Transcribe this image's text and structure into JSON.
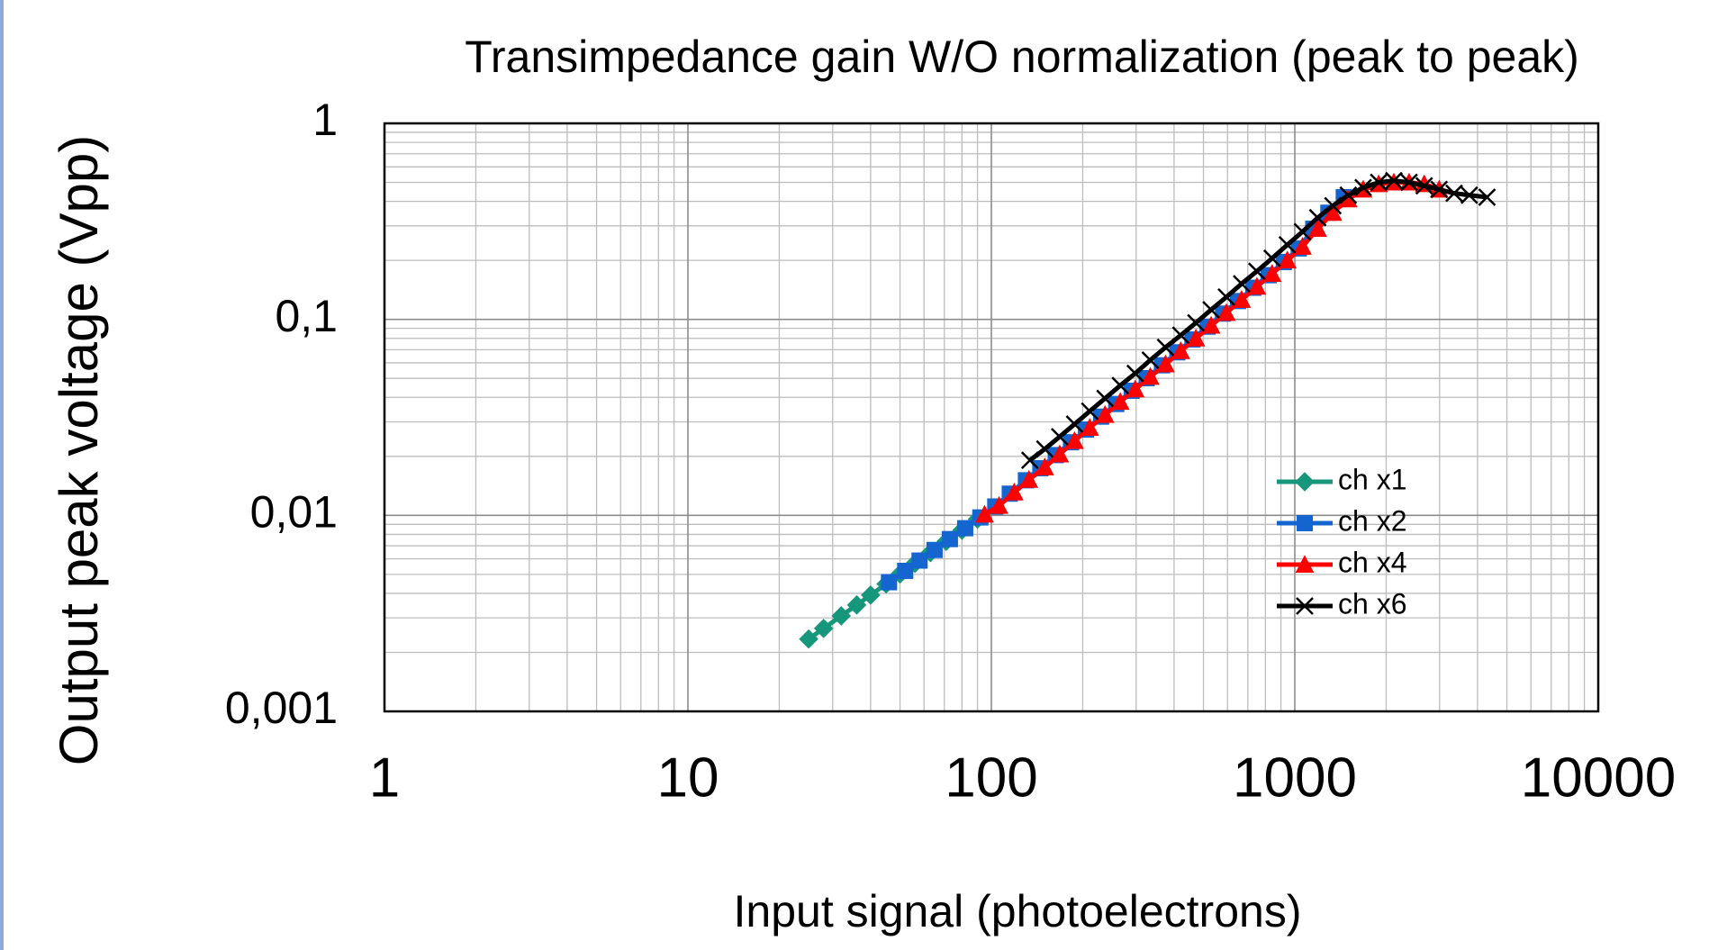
{
  "chart_data": {
    "type": "scatter",
    "title": "Transimpedance gain W/O normalization (peak to peak)",
    "x_label": "Input signal (photoelectrons)",
    "y_label": "Output peak voltage  (Vpp)",
    "xscale": "log",
    "yscale": "log",
    "xlim": [
      1,
      10000
    ],
    "xticks": [
      1,
      10,
      100,
      1000,
      10000
    ],
    "ylim": [
      0.001,
      1
    ],
    "yticks": [
      {
        "value": 0.001,
        "label": "0,001"
      },
      {
        "value": 0.01,
        "label": "0,01"
      },
      {
        "value": 0.1,
        "label": "0,1"
      },
      1
    ],
    "grid": true,
    "minor_grid": true,
    "legend": "center right",
    "series": [
      {
        "name": "ch x1",
        "color": "#16967a",
        "marker": "diamond",
        "x": [
          25,
          28,
          32,
          36,
          40,
          45,
          50,
          56,
          63,
          71,
          80,
          90
        ],
        "values": [
          0.00234,
          0.00265,
          0.00307,
          0.00349,
          0.00392,
          0.00447,
          0.00502,
          0.00569,
          0.00646,
          0.00737,
          0.0084,
          0.00957
        ]
      },
      {
        "name": "ch x2",
        "color": "#1565d0",
        "marker": "square",
        "x": [
          46,
          52,
          58,
          65,
          73,
          82,
          92,
          103,
          115,
          130,
          145,
          163,
          183,
          205,
          230,
          258,
          290,
          325,
          365,
          410,
          460,
          516,
          580,
          650,
          730,
          820,
          920,
          1030,
          1150,
          1290,
          1450
        ],
        "values": [
          0.00456,
          0.00521,
          0.00588,
          0.00666,
          0.00757,
          0.0086,
          0.00976,
          0.0111,
          0.0129,
          0.0151,
          0.0174,
          0.0203,
          0.0236,
          0.0274,
          0.0319,
          0.037,
          0.0432,
          0.0501,
          0.0583,
          0.0679,
          0.079,
          0.0918,
          0.107,
          0.124,
          0.145,
          0.168,
          0.196,
          0.23,
          0.29,
          0.35,
          0.42
        ]
      },
      {
        "name": "ch x4",
        "color": "#ff0000",
        "marker": "triangle",
        "x": [
          95,
          106,
          119,
          133,
          150,
          168,
          188,
          211,
          237,
          266,
          298,
          334,
          375,
          421,
          472,
          530,
          595,
          668,
          750,
          842,
          945,
          1060,
          1190,
          1335,
          1500,
          1680,
          1890,
          2120,
          2380,
          2670,
          2990
        ],
        "values": [
          0.0101,
          0.0112,
          0.0131,
          0.0152,
          0.0176,
          0.0205,
          0.024,
          0.028,
          0.0326,
          0.038,
          0.044,
          0.051,
          0.059,
          0.069,
          0.08,
          0.093,
          0.108,
          0.126,
          0.147,
          0.171,
          0.2,
          0.235,
          0.29,
          0.35,
          0.41,
          0.46,
          0.49,
          0.5,
          0.5,
          0.49,
          0.46
        ]
      },
      {
        "name": "ch x6",
        "color": "#000000",
        "marker": "x",
        "x": [
          134,
          150,
          168,
          188,
          211,
          237,
          266,
          298,
          334,
          375,
          421,
          472,
          530,
          595,
          668,
          750,
          842,
          945,
          1060,
          1190,
          1335,
          1500,
          1680,
          1890,
          2120,
          2380,
          2670,
          2990,
          3350,
          3760,
          4300
        ],
        "values": [
          0.0191,
          0.0218,
          0.0252,
          0.0292,
          0.034,
          0.0395,
          0.046,
          0.053,
          0.062,
          0.072,
          0.083,
          0.096,
          0.112,
          0.13,
          0.152,
          0.176,
          0.205,
          0.24,
          0.28,
          0.33,
          0.38,
          0.43,
          0.47,
          0.5,
          0.51,
          0.5,
          0.48,
          0.46,
          0.44,
          0.43,
          0.42
        ]
      }
    ]
  }
}
